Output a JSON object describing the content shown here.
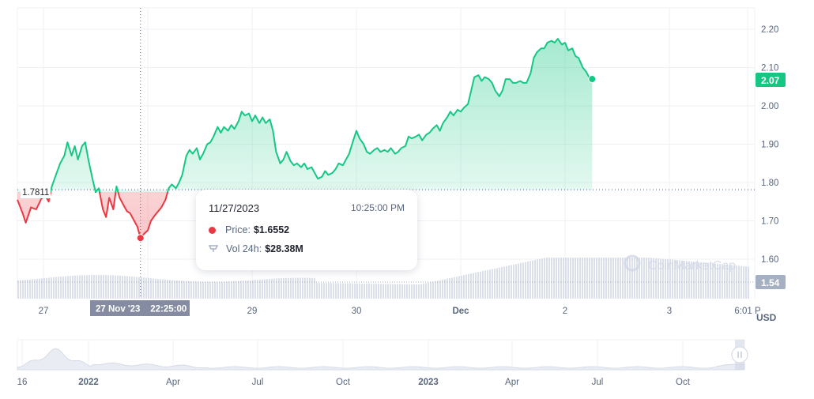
{
  "chart_data": {
    "type": "area",
    "currency_label": "USD",
    "price_axis": {
      "ticks": [
        "2.20",
        "2.10",
        "2.00",
        "1.90",
        "1.80",
        "1.70",
        "1.60"
      ],
      "tick_values": [
        2.2,
        2.1,
        2.0,
        1.9,
        1.8,
        1.7,
        1.6
      ],
      "range": [
        1.53,
        2.26
      ]
    },
    "reference_price": "1.7811",
    "reference_value": 1.7811,
    "current_price_badge": "2.07",
    "current_price_value": 2.07,
    "volume_badge": "1.54",
    "x_labels": [
      {
        "label": "27",
        "t": 0.0
      },
      {
        "label": "29",
        "t": 2.0
      },
      {
        "label": "30",
        "t": 3.0
      },
      {
        "label": "Dec",
        "t": 4.0
      },
      {
        "label": "2",
        "t": 5.0
      },
      {
        "label": "3",
        "t": 6.0
      },
      {
        "label": "6:01 P",
        "t": 6.75
      }
    ],
    "crosshair_label": "27 Nov '23    22:25:00",
    "crosshair_t": 0.93,
    "price_series": [
      [
        -0.25,
        1.755
      ],
      [
        -0.2,
        1.72
      ],
      [
        -0.17,
        1.695
      ],
      [
        -0.12,
        1.735
      ],
      [
        -0.07,
        1.73
      ],
      [
        -0.02,
        1.758
      ],
      [
        0.02,
        1.765
      ],
      [
        0.05,
        1.75
      ],
      [
        0.08,
        1.79
      ],
      [
        0.12,
        1.82
      ],
      [
        0.16,
        1.85
      ],
      [
        0.2,
        1.87
      ],
      [
        0.23,
        1.905
      ],
      [
        0.27,
        1.87
      ],
      [
        0.3,
        1.895
      ],
      [
        0.33,
        1.86
      ],
      [
        0.37,
        1.895
      ],
      [
        0.4,
        1.905
      ],
      [
        0.43,
        1.86
      ],
      [
        0.47,
        1.81
      ],
      [
        0.5,
        1.775
      ],
      [
        0.53,
        1.785
      ],
      [
        0.57,
        1.73
      ],
      [
        0.6,
        1.71
      ],
      [
        0.63,
        1.76
      ],
      [
        0.67,
        1.73
      ],
      [
        0.7,
        1.79
      ],
      [
        0.73,
        1.76
      ],
      [
        0.77,
        1.74
      ],
      [
        0.8,
        1.725
      ],
      [
        0.83,
        1.72
      ],
      [
        0.87,
        1.7
      ],
      [
        0.9,
        1.685
      ],
      [
        0.93,
        1.6552
      ],
      [
        0.96,
        1.665
      ],
      [
        1.0,
        1.675
      ],
      [
        1.03,
        1.7
      ],
      [
        1.07,
        1.715
      ],
      [
        1.1,
        1.725
      ],
      [
        1.13,
        1.735
      ],
      [
        1.17,
        1.755
      ],
      [
        1.2,
        1.785
      ],
      [
        1.23,
        1.795
      ],
      [
        1.27,
        1.785
      ],
      [
        1.3,
        1.8
      ],
      [
        1.33,
        1.82
      ],
      [
        1.37,
        1.87
      ],
      [
        1.4,
        1.885
      ],
      [
        1.43,
        1.875
      ],
      [
        1.47,
        1.89
      ],
      [
        1.5,
        1.86
      ],
      [
        1.53,
        1.875
      ],
      [
        1.57,
        1.9
      ],
      [
        1.6,
        1.905
      ],
      [
        1.63,
        1.92
      ],
      [
        1.67,
        1.945
      ],
      [
        1.7,
        1.93
      ],
      [
        1.73,
        1.945
      ],
      [
        1.77,
        1.935
      ],
      [
        1.8,
        1.95
      ],
      [
        1.83,
        1.94
      ],
      [
        1.87,
        1.96
      ],
      [
        1.9,
        1.985
      ],
      [
        1.93,
        1.975
      ],
      [
        1.97,
        1.98
      ],
      [
        2.0,
        1.96
      ],
      [
        2.03,
        1.975
      ],
      [
        2.07,
        1.955
      ],
      [
        2.1,
        1.97
      ],
      [
        2.13,
        1.955
      ],
      [
        2.17,
        1.965
      ],
      [
        2.2,
        1.935
      ],
      [
        2.23,
        1.88
      ],
      [
        2.27,
        1.85
      ],
      [
        2.3,
        1.86
      ],
      [
        2.33,
        1.88
      ],
      [
        2.37,
        1.855
      ],
      [
        2.4,
        1.845
      ],
      [
        2.43,
        1.85
      ],
      [
        2.47,
        1.84
      ],
      [
        2.5,
        1.85
      ],
      [
        2.53,
        1.835
      ],
      [
        2.57,
        1.84
      ],
      [
        2.6,
        1.825
      ],
      [
        2.63,
        1.81
      ],
      [
        2.67,
        1.815
      ],
      [
        2.7,
        1.83
      ],
      [
        2.73,
        1.82
      ],
      [
        2.77,
        1.825
      ],
      [
        2.8,
        1.835
      ],
      [
        2.83,
        1.85
      ],
      [
        2.87,
        1.845
      ],
      [
        2.9,
        1.86
      ],
      [
        2.93,
        1.875
      ],
      [
        2.97,
        1.91
      ],
      [
        3.0,
        1.935
      ],
      [
        3.03,
        1.915
      ],
      [
        3.07,
        1.9
      ],
      [
        3.1,
        1.88
      ],
      [
        3.13,
        1.875
      ],
      [
        3.17,
        1.885
      ],
      [
        3.2,
        1.89
      ],
      [
        3.23,
        1.88
      ],
      [
        3.27,
        1.885
      ],
      [
        3.3,
        1.88
      ],
      [
        3.33,
        1.89
      ],
      [
        3.37,
        1.875
      ],
      [
        3.4,
        1.88
      ],
      [
        3.43,
        1.89
      ],
      [
        3.47,
        1.895
      ],
      [
        3.5,
        1.92
      ],
      [
        3.53,
        1.915
      ],
      [
        3.57,
        1.92
      ],
      [
        3.6,
        1.925
      ],
      [
        3.63,
        1.91
      ],
      [
        3.67,
        1.925
      ],
      [
        3.7,
        1.93
      ],
      [
        3.73,
        1.94
      ],
      [
        3.77,
        1.95
      ],
      [
        3.8,
        1.935
      ],
      [
        3.83,
        1.955
      ],
      [
        3.87,
        1.97
      ],
      [
        3.9,
        1.985
      ],
      [
        3.93,
        1.975
      ],
      [
        3.97,
        1.99
      ],
      [
        4.0,
        1.985
      ],
      [
        4.03,
        1.995
      ],
      [
        4.07,
        2.005
      ],
      [
        4.1,
        2.04
      ],
      [
        4.13,
        2.075
      ],
      [
        4.17,
        2.08
      ],
      [
        4.2,
        2.065
      ],
      [
        4.23,
        2.075
      ],
      [
        4.27,
        2.07
      ],
      [
        4.3,
        2.06
      ],
      [
        4.33,
        2.04
      ],
      [
        4.37,
        2.025
      ],
      [
        4.4,
        2.04
      ],
      [
        4.43,
        2.07
      ],
      [
        4.47,
        2.07
      ],
      [
        4.5,
        2.06
      ],
      [
        4.53,
        2.06
      ],
      [
        4.57,
        2.065
      ],
      [
        4.6,
        2.06
      ],
      [
        4.63,
        2.06
      ],
      [
        4.67,
        2.085
      ],
      [
        4.7,
        2.125
      ],
      [
        4.73,
        2.14
      ],
      [
        4.77,
        2.15
      ],
      [
        4.8,
        2.15
      ],
      [
        4.83,
        2.165
      ],
      [
        4.87,
        2.17
      ],
      [
        4.9,
        2.165
      ],
      [
        4.93,
        2.175
      ],
      [
        4.97,
        2.16
      ],
      [
        5.0,
        2.165
      ],
      [
        5.03,
        2.145
      ],
      [
        5.07,
        2.15
      ],
      [
        5.1,
        2.13
      ],
      [
        5.13,
        2.125
      ],
      [
        5.17,
        2.1
      ],
      [
        5.2,
        2.09
      ],
      [
        5.23,
        2.075
      ],
      [
        5.26,
        2.07
      ]
    ],
    "reference_t": 1.5,
    "volume_label": "Vol 24h",
    "tooltip": {
      "date": "11/27/2023",
      "time": "10:25:00 PM",
      "price_label": "Price:",
      "price_value": "$1.6552",
      "volume_label": "Vol 24h:",
      "volume_value": "$28.38M"
    },
    "watermark": "CoinMarketCap",
    "overview": {
      "x_labels": [
        "16",
        "2022",
        "Apr",
        "Jul",
        "Oct",
        "2023",
        "Apr",
        "Jul",
        "Oct"
      ],
      "x_label_bold": [
        false,
        true,
        false,
        false,
        false,
        true,
        false,
        false,
        false
      ]
    },
    "colors": {
      "up": "#16c784",
      "down": "#ea3943",
      "grid": "#eff2f5",
      "text": "#58667e",
      "badge_volume": "#a6b0c3",
      "crosshair_label_bg": "#858ca2"
    }
  }
}
